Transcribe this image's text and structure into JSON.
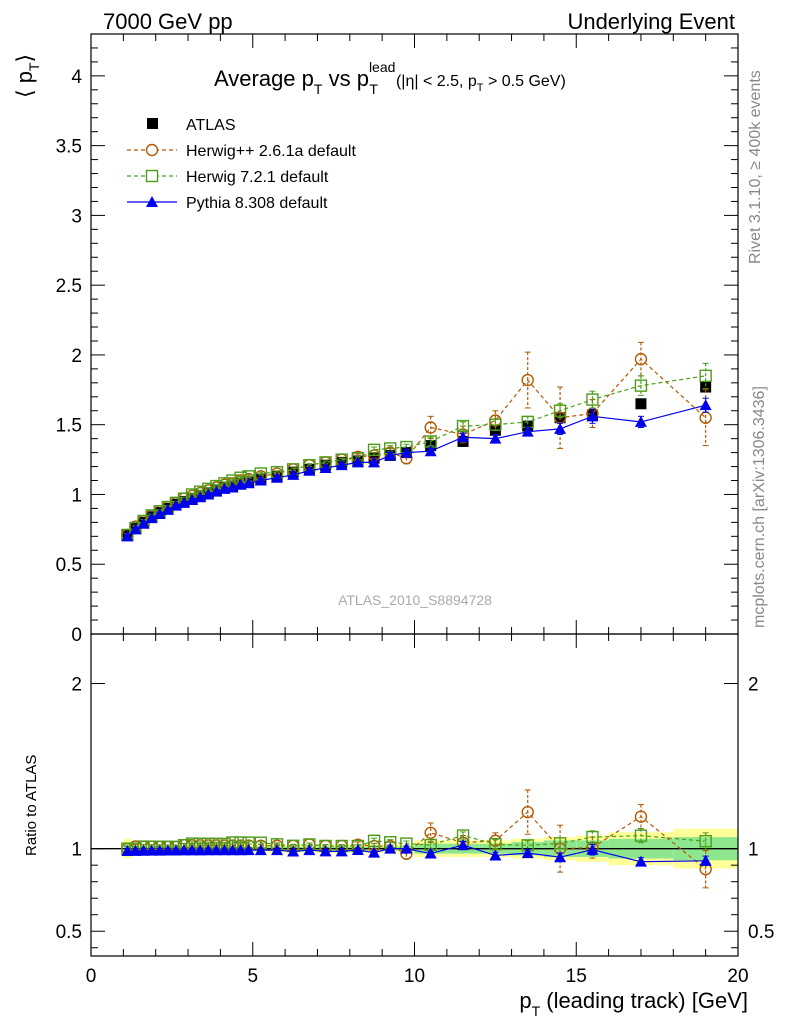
{
  "header": {
    "left": "7000 GeV pp",
    "right": "Underlying Event"
  },
  "side_labels": {
    "rivet": "Rivet 3.1.10, ≥ 400k events",
    "mcplots": "mcplots.cern.ch [arXiv:1306.3436]"
  },
  "chart_data": [
    {
      "type": "scatter",
      "title": {
        "main": "Average p",
        "sub1": "T",
        "mid": " vs p",
        "sup": "lead",
        "sub2": "T",
        "cut": "(|η| < 2.5, p",
        "cut_sub": "T",
        "cut_end": " > 0.5 GeV)"
      },
      "ylabel": "⟨ p",
      "ylabel_sub": "T",
      "ylabel_end": "⟩",
      "xlim": [
        0,
        20
      ],
      "ylim": [
        0,
        4.3
      ],
      "yticks": [
        0,
        0.5,
        1,
        1.5,
        2,
        2.5,
        3,
        3.5,
        4
      ],
      "ytick_labels": [
        "0",
        "0.5",
        "1",
        "1.5",
        "2",
        "2.5",
        "3",
        "3.5",
        "4"
      ],
      "watermark": "ATLAS_2010_S8894728",
      "legend_position": "top-left",
      "series": [
        {
          "name": "ATLAS",
          "color": "#000000",
          "marker": "filled-square",
          "x": [
            1.125,
            1.375,
            1.625,
            1.875,
            2.125,
            2.375,
            2.625,
            2.875,
            3.125,
            3.375,
            3.625,
            3.875,
            4.125,
            4.375,
            4.625,
            4.875,
            5.25,
            5.75,
            6.25,
            6.75,
            7.25,
            7.75,
            8.25,
            8.75,
            9.25,
            9.75,
            10.5,
            11.5,
            12.5,
            13.5,
            14.5,
            15.5,
            17.0,
            19.0
          ],
          "y": [
            0.71,
            0.76,
            0.8,
            0.84,
            0.87,
            0.9,
            0.93,
            0.95,
            0.97,
            0.99,
            1.01,
            1.03,
            1.05,
            1.06,
            1.08,
            1.09,
            1.11,
            1.13,
            1.16,
            1.18,
            1.21,
            1.23,
            1.24,
            1.26,
            1.28,
            1.3,
            1.35,
            1.38,
            1.46,
            1.49,
            1.55,
            1.57,
            1.65,
            1.77
          ]
        },
        {
          "name": "Herwig++ 2.6.1a default",
          "color": "#b35900",
          "marker": "open-circle",
          "line": "dashed",
          "x": [
            1.125,
            1.375,
            1.625,
            1.875,
            2.125,
            2.375,
            2.625,
            2.875,
            3.125,
            3.375,
            3.625,
            3.875,
            4.125,
            4.375,
            4.625,
            4.875,
            5.25,
            5.75,
            6.25,
            6.75,
            7.25,
            7.75,
            8.25,
            8.75,
            9.25,
            9.75,
            10.5,
            11.5,
            12.5,
            13.5,
            14.5,
            15.5,
            17.0,
            19.0
          ],
          "y": [
            0.71,
            0.77,
            0.81,
            0.85,
            0.88,
            0.91,
            0.94,
            0.97,
            0.99,
            1.01,
            1.03,
            1.05,
            1.07,
            1.08,
            1.1,
            1.11,
            1.13,
            1.15,
            1.18,
            1.21,
            1.23,
            1.25,
            1.27,
            1.28,
            1.3,
            1.26,
            1.48,
            1.43,
            1.53,
            1.82,
            1.55,
            1.58,
            1.97,
            1.55
          ],
          "err": [
            0.01,
            0.01,
            0.01,
            0.01,
            0.01,
            0.01,
            0.01,
            0.01,
            0.01,
            0.01,
            0.01,
            0.01,
            0.01,
            0.01,
            0.01,
            0.01,
            0.01,
            0.01,
            0.01,
            0.01,
            0.01,
            0.01,
            0.02,
            0.02,
            0.03,
            0.04,
            0.08,
            0.06,
            0.07,
            0.2,
            0.22,
            0.1,
            0.12,
            0.2
          ]
        },
        {
          "name": "Herwig 7.2.1 default",
          "color": "#4c9e1a",
          "marker": "open-square",
          "line": "dashed",
          "x": [
            1.125,
            1.375,
            1.625,
            1.875,
            2.125,
            2.375,
            2.625,
            2.875,
            3.125,
            3.375,
            3.625,
            3.875,
            4.125,
            4.375,
            4.625,
            4.875,
            5.25,
            5.75,
            6.25,
            6.75,
            7.25,
            7.75,
            8.25,
            8.75,
            9.25,
            9.75,
            10.5,
            11.5,
            12.5,
            13.5,
            14.5,
            15.5,
            17.0,
            19.0
          ],
          "y": [
            0.71,
            0.76,
            0.81,
            0.85,
            0.88,
            0.91,
            0.94,
            0.97,
            1.0,
            1.02,
            1.04,
            1.06,
            1.08,
            1.1,
            1.12,
            1.13,
            1.15,
            1.16,
            1.18,
            1.21,
            1.23,
            1.25,
            1.26,
            1.32,
            1.33,
            1.34,
            1.38,
            1.49,
            1.5,
            1.52,
            1.6,
            1.68,
            1.78,
            1.85
          ],
          "err": [
            0.01,
            0.01,
            0.01,
            0.01,
            0.01,
            0.01,
            0.01,
            0.01,
            0.01,
            0.01,
            0.01,
            0.01,
            0.01,
            0.01,
            0.01,
            0.01,
            0.01,
            0.01,
            0.01,
            0.01,
            0.01,
            0.01,
            0.01,
            0.02,
            0.02,
            0.02,
            0.03,
            0.03,
            0.04,
            0.04,
            0.05,
            0.06,
            0.07,
            0.09
          ]
        },
        {
          "name": "Pythia 8.308 default",
          "color": "#0000ee",
          "marker": "filled-triangle",
          "line": "solid",
          "x": [
            1.125,
            1.375,
            1.625,
            1.875,
            2.125,
            2.375,
            2.625,
            2.875,
            3.125,
            3.375,
            3.625,
            3.875,
            4.125,
            4.375,
            4.625,
            4.875,
            5.25,
            5.75,
            6.25,
            6.75,
            7.25,
            7.75,
            8.25,
            8.75,
            9.25,
            9.75,
            10.5,
            11.5,
            12.5,
            13.5,
            14.5,
            15.5,
            17.0,
            19.0
          ],
          "y": [
            0.7,
            0.75,
            0.79,
            0.83,
            0.86,
            0.89,
            0.92,
            0.94,
            0.96,
            0.98,
            1.0,
            1.02,
            1.04,
            1.05,
            1.07,
            1.08,
            1.1,
            1.12,
            1.14,
            1.17,
            1.19,
            1.21,
            1.23,
            1.23,
            1.28,
            1.3,
            1.31,
            1.41,
            1.4,
            1.45,
            1.47,
            1.56,
            1.52,
            1.64
          ],
          "err": [
            0.01,
            0.01,
            0.01,
            0.01,
            0.01,
            0.01,
            0.01,
            0.01,
            0.01,
            0.01,
            0.01,
            0.01,
            0.01,
            0.01,
            0.01,
            0.01,
            0.01,
            0.01,
            0.01,
            0.01,
            0.01,
            0.01,
            0.01,
            0.01,
            0.02,
            0.02,
            0.02,
            0.03,
            0.03,
            0.03,
            0.04,
            0.05,
            0.04,
            0.05
          ]
        }
      ]
    },
    {
      "type": "scatter",
      "ylabel": "Ratio to ATLAS",
      "xlabel": "p",
      "xlabel_sub": "T",
      "xlabel_end": " (leading track) [GeV]",
      "xlim": [
        0,
        20
      ],
      "ylim": [
        0.35,
        2.3
      ],
      "xticks": [
        0,
        5,
        10,
        15,
        20
      ],
      "xtick_labels": [
        "0",
        "5",
        "10",
        "15",
        "20"
      ],
      "yticks": [
        0.5,
        1,
        2
      ],
      "ytick_labels": [
        "0.5",
        "1",
        "2"
      ],
      "reference_line": 1,
      "bands": {
        "x": [
          1.0,
          1.25,
          1.5,
          1.75,
          2.0,
          2.25,
          2.5,
          2.75,
          3.0,
          3.25,
          3.5,
          3.75,
          4.0,
          4.25,
          4.5,
          4.75,
          5.0,
          5.5,
          6.0,
          6.5,
          7.0,
          7.5,
          8.0,
          8.5,
          9.0,
          9.5,
          10.0,
          11.0,
          12.0,
          13.0,
          14.0,
          15.0,
          16.0,
          18.0,
          20.0
        ],
        "inner": [
          0.03,
          0.02,
          0.015,
          0.012,
          0.012,
          0.012,
          0.012,
          0.012,
          0.012,
          0.012,
          0.012,
          0.012,
          0.012,
          0.012,
          0.012,
          0.012,
          0.012,
          0.012,
          0.012,
          0.012,
          0.012,
          0.012,
          0.012,
          0.012,
          0.012,
          0.015,
          0.03,
          0.03,
          0.03,
          0.04,
          0.05,
          0.05,
          0.06,
          0.07
        ],
        "outer": [
          0.06,
          0.04,
          0.03,
          0.025,
          0.025,
          0.025,
          0.025,
          0.025,
          0.025,
          0.025,
          0.025,
          0.025,
          0.025,
          0.025,
          0.025,
          0.025,
          0.025,
          0.025,
          0.025,
          0.025,
          0.025,
          0.025,
          0.025,
          0.025,
          0.025,
          0.03,
          0.05,
          0.05,
          0.05,
          0.06,
          0.07,
          0.08,
          0.1,
          0.12
        ],
        "inner_color": "#8ee68e",
        "outer_color": "#ffff99"
      }
    }
  ]
}
